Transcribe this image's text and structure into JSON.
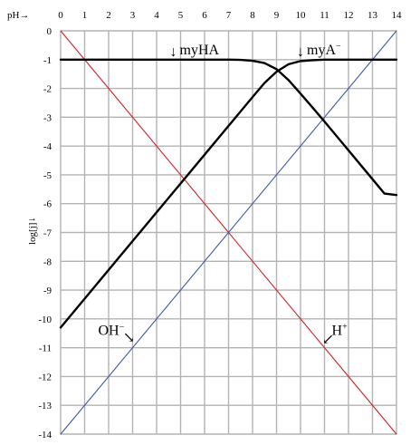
{
  "chart_data": {
    "type": "line",
    "x_axis_label": "pH→",
    "y_axis_label": "log[j]",
    "y_axis_arrow": "→",
    "xlim": [
      0,
      14
    ],
    "ylim": [
      -14,
      0
    ],
    "x_ticks": [
      "0",
      "1",
      "2",
      "3",
      "4",
      "5",
      "6",
      "7",
      "8",
      "9",
      "10",
      "11",
      "12",
      "13",
      "14"
    ],
    "y_ticks": [
      "0",
      "-1",
      "-2",
      "-3",
      "-4",
      "-5",
      "-6",
      "-7",
      "-8",
      "-9",
      "-10",
      "-11",
      "-12",
      "-13",
      "-14"
    ],
    "grid": true,
    "series": [
      {
        "name": "H+",
        "color": "#d42020",
        "points": [
          [
            0,
            0
          ],
          [
            14,
            -14
          ]
        ]
      },
      {
        "name": "OH-",
        "color": "#3a5ba8",
        "points": [
          [
            0,
            -14
          ],
          [
            14,
            0
          ]
        ]
      },
      {
        "name": "myHA",
        "color": "#000000",
        "points": [
          [
            0,
            -1.0
          ],
          [
            1,
            -1.0
          ],
          [
            2,
            -1.0
          ],
          [
            3,
            -1.0
          ],
          [
            4,
            -1.0
          ],
          [
            5,
            -1.0
          ],
          [
            6,
            -1.0
          ],
          [
            7,
            -1.0
          ],
          [
            7.5,
            -1.01
          ],
          [
            8,
            -1.04
          ],
          [
            8.5,
            -1.12
          ],
          [
            9,
            -1.33
          ],
          [
            9.5,
            -1.71
          ],
          [
            10,
            -2.18
          ],
          [
            10.5,
            -2.66
          ],
          [
            11,
            -3.15
          ],
          [
            11.5,
            -3.65
          ],
          [
            12,
            -4.15
          ],
          [
            12.5,
            -4.65
          ],
          [
            13,
            -5.15
          ],
          [
            13.5,
            -5.65
          ],
          [
            14,
            -5.7
          ]
        ]
      },
      {
        "name": "myA-",
        "color": "#000000",
        "points": [
          [
            0,
            -10.3
          ],
          [
            1,
            -9.3
          ],
          [
            2,
            -8.3
          ],
          [
            3,
            -7.3
          ],
          [
            4,
            -6.3
          ],
          [
            5,
            -5.3
          ],
          [
            6,
            -4.3
          ],
          [
            7,
            -3.3
          ],
          [
            7.5,
            -2.8
          ],
          [
            8,
            -2.3
          ],
          [
            8.5,
            -1.81
          ],
          [
            9,
            -1.42
          ],
          [
            9.5,
            -1.16
          ],
          [
            10,
            -1.05
          ],
          [
            10.5,
            -1.02
          ],
          [
            11,
            -1.0
          ],
          [
            12,
            -1.0
          ],
          [
            13,
            -1.0
          ],
          [
            14,
            -1.0
          ]
        ]
      }
    ],
    "annotations": [
      {
        "text": "myHA",
        "sup": "",
        "arrow": "↓",
        "x": 4.7,
        "y": -1.0
      },
      {
        "text": "myA",
        "sup": "−",
        "arrow": "↓",
        "x": 10.0,
        "y": -1.0
      },
      {
        "text": "OH",
        "sup": "−",
        "arrow": "↘",
        "x": 3.0,
        "y": -11.0
      },
      {
        "text": "H",
        "sup": "+",
        "arrow": "↙",
        "x": 11.0,
        "y": -11.0
      }
    ]
  }
}
